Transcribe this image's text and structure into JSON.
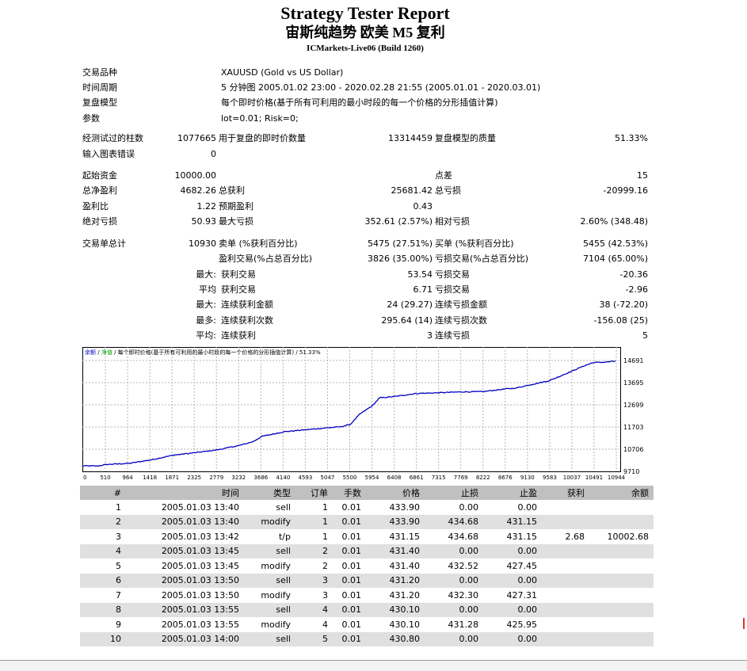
{
  "report": {
    "title": "Strategy Tester Report",
    "subtitle": "宙斯纯趋势 欧美 M5 复利",
    "server": "ICMarkets-Live06 (Build 1260)"
  },
  "info": {
    "symbol_label": "交易品种",
    "symbol_value": "XAUUSD (Gold vs US Dollar)",
    "period_label": "时间周期",
    "period_value": "5 分钟图 2005.01.02 23:00 - 2020.02.28 21:55 (2005.01.01 - 2020.03.01)",
    "model_label": "复盘模型",
    "model_value": "每个即时价格(基于所有可利用的最小时段的每一个价格的分形插值计算)",
    "params_label": "参数",
    "params_value": "lot=0.01; Risk=0;"
  },
  "bars": {
    "bars_label": "经测试过的柱数",
    "bars_value": "1077665",
    "ticks_label": "用于复盘的即时价数量",
    "ticks_value": "13314459",
    "quality_label": "复盘模型的质量",
    "quality_value": "51.33%",
    "errors_label": "输入图表错误",
    "errors_value": "0"
  },
  "stats": {
    "deposit_label": "起始资金",
    "deposit_value": "10000.00",
    "spread_label": "点差",
    "spread_value": "15",
    "net_label": "总净盈利",
    "net_value": "4682.26",
    "gross_profit_label": "总获利",
    "gross_profit_value": "25681.42",
    "gross_loss_label": "总亏损",
    "gross_loss_value": "-20999.16",
    "pf_label": "盈利比",
    "pf_value": "1.22",
    "expected_label": "预期盈利",
    "expected_value": "0.43",
    "abs_dd_label": "绝对亏损",
    "abs_dd_value": "50.93",
    "max_dd_label": "最大亏损",
    "max_dd_value": "352.61 (2.57%)",
    "rel_dd_label": "相对亏损",
    "rel_dd_value": "2.60% (348.48)"
  },
  "trades_summary": {
    "total_label": "交易单总计",
    "total_value": "10930",
    "short_label": "卖单 (%获利百分比)",
    "short_value": "5475 (27.51%)",
    "long_label": "买单 (%获利百分比)",
    "long_value": "5455 (42.53%)",
    "profit_trades_label": "盈利交易(%占总百分比)",
    "profit_trades_value": "3826 (35.00%)",
    "loss_trades_label": "亏损交易(%占总百分比)",
    "loss_trades_value": "7104 (65.00%)",
    "largest_prefix": "最大:",
    "largest_profit_label": "获利交易",
    "largest_profit_value": "53.54",
    "largest_loss_label": "亏损交易",
    "largest_loss_value": "-20.36",
    "average_prefix": "平均",
    "average_profit_label": "获利交易",
    "average_profit_value": "6.71",
    "average_loss_label": "亏损交易",
    "average_loss_value": "-2.96",
    "max_prefix": "最大:",
    "max_cons_wins_label": "连续获利金额",
    "max_cons_wins_value": "24 (29.27)",
    "max_cons_losses_label": "连续亏损金额",
    "max_cons_losses_value": "38 (-72.20)",
    "most_prefix": "最多:",
    "most_cons_profit_label": "连续获利次数",
    "most_cons_profit_value": "295.64 (14)",
    "most_cons_loss_label": "连续亏损次数",
    "most_cons_loss_value": "-156.08 (25)",
    "avg2_prefix": "平均:",
    "avg_cons_wins_label": "连续获利",
    "avg_cons_wins_value": "3",
    "avg_cons_losses_label": "连续亏损",
    "avg_cons_losses_value": "5"
  },
  "chart_data": {
    "type": "line",
    "legend": {
      "balance": "余额",
      "sep1": "/",
      "equity": "净值",
      "rest": "/ 每个即时价格(基于所有可利用的最小时段的每一个价格的分形插值计算) / 51.33%"
    },
    "y_ticks": [
      "14691",
      "13695",
      "12699",
      "11703",
      "10706",
      "9710"
    ],
    "x_ticks": [
      "0",
      "510",
      "964",
      "1418",
      "1871",
      "2325",
      "2779",
      "3232",
      "3686",
      "4140",
      "4593",
      "5047",
      "5500",
      "5954",
      "6408",
      "6861",
      "7315",
      "7769",
      "8222",
      "8676",
      "9130",
      "9583",
      "10037",
      "10491",
      "10944"
    ],
    "xlim": [
      0,
      10944
    ],
    "ylim": [
      9710,
      14691
    ],
    "colors": {
      "balance": "#0000c0",
      "equity": "#00a000",
      "grid": "#b4b4b4"
    },
    "series": [
      {
        "name": "余额",
        "x": [
          0,
          300,
          510,
          964,
          1418,
          1871,
          2325,
          2779,
          3232,
          3500,
          3686,
          4140,
          4593,
          5047,
          5300,
          5500,
          5700,
          5954,
          6100,
          6408,
          6861,
          7315,
          7769,
          8222,
          8676,
          8900,
          9130,
          9583,
          10037,
          10300,
          10491,
          10700,
          10944
        ],
        "y": [
          9960,
          9950,
          10020,
          10070,
          10230,
          10440,
          10550,
          10680,
          10880,
          11040,
          11280,
          11490,
          11580,
          11670,
          11710,
          11820,
          12290,
          12660,
          13010,
          13070,
          13210,
          13240,
          13280,
          13290,
          13410,
          13450,
          13570,
          13780,
          14200,
          14450,
          14600,
          14610,
          14660
        ]
      }
    ]
  },
  "table": {
    "headers": [
      "#",
      "时间",
      "类型",
      "订单",
      "手数",
      "价格",
      "止损",
      "止盈",
      "获利",
      "余额"
    ],
    "rows": [
      [
        "1",
        "2005.01.03 13:40",
        "sell",
        "1",
        "0.01",
        "433.90",
        "0.00",
        "0.00",
        "",
        ""
      ],
      [
        "2",
        "2005.01.03 13:40",
        "modify",
        "1",
        "0.01",
        "433.90",
        "434.68",
        "431.15",
        "",
        ""
      ],
      [
        "3",
        "2005.01.03 13:42",
        "t/p",
        "1",
        "0.01",
        "431.15",
        "434.68",
        "431.15",
        "2.68",
        "10002.68"
      ],
      [
        "4",
        "2005.01.03 13:45",
        "sell",
        "2",
        "0.01",
        "431.40",
        "0.00",
        "0.00",
        "",
        ""
      ],
      [
        "5",
        "2005.01.03 13:45",
        "modify",
        "2",
        "0.01",
        "431.40",
        "432.52",
        "427.45",
        "",
        ""
      ],
      [
        "6",
        "2005.01.03 13:50",
        "sell",
        "3",
        "0.01",
        "431.20",
        "0.00",
        "0.00",
        "",
        ""
      ],
      [
        "7",
        "2005.01.03 13:50",
        "modify",
        "3",
        "0.01",
        "431.20",
        "432.30",
        "427.31",
        "",
        ""
      ],
      [
        "8",
        "2005.01.03 13:55",
        "sell",
        "4",
        "0.01",
        "430.10",
        "0.00",
        "0.00",
        "",
        ""
      ],
      [
        "9",
        "2005.01.03 13:55",
        "modify",
        "4",
        "0.01",
        "430.10",
        "431.28",
        "425.95",
        "",
        ""
      ],
      [
        "10",
        "2005.01.03 14:00",
        "sell",
        "5",
        "0.01",
        "430.80",
        "0.00",
        "0.00",
        "",
        ""
      ]
    ]
  }
}
